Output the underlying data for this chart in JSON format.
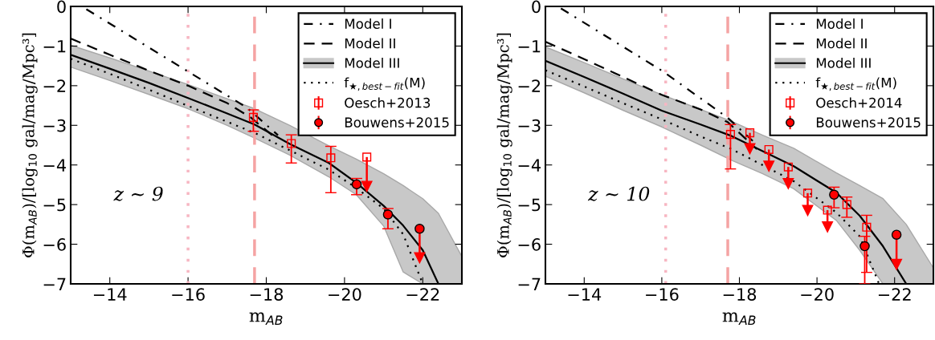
{
  "chart_data": [
    {
      "type": "line",
      "xlabel": "m$_{AB}$",
      "ylabel": "Φ(m$_{AB}$)/[log$_{10}$ gal/mag/Mpc³]",
      "xlim": [
        -13,
        -23
      ],
      "xticks": [
        -14,
        -16,
        -18,
        -20,
        -22
      ],
      "ylim": [
        -7,
        0
      ],
      "yticks": [
        -7,
        -6,
        -5,
        -4,
        -3,
        -2,
        -1,
        0
      ],
      "grid": false,
      "legend": "top right",
      "annotations": [
        "z ∼ 9"
      ],
      "ref_lines": [
        {
          "axis": "x",
          "value": -16,
          "color": "#f7b6c2",
          "line_style": "dotted"
        },
        {
          "axis": "x",
          "value": -17.7,
          "color": "#f5a3a3",
          "line_style": "dashed"
        }
      ],
      "series": [
        {
          "name": "Model I",
          "color": "#000000",
          "line_style": "dashdot",
          "x": [
            -13.4,
            -17.5,
            -18.3
          ],
          "values": [
            -0.07,
            -2.55,
            -3.25
          ]
        },
        {
          "name": "Model II",
          "color": "#000000",
          "line_style": "dashed",
          "x": [
            -13,
            -14,
            -15,
            -16,
            -17,
            -17.6,
            -18.15
          ],
          "values": [
            -0.81,
            -1.22,
            -1.62,
            -2.0,
            -2.44,
            -2.8,
            -3.25
          ]
        },
        {
          "name": "Model III",
          "color": "#000000",
          "line_style": "solid",
          "x": [
            -13,
            -14,
            -15,
            -16,
            -17,
            -17.7,
            -18.6,
            -19.6,
            -20.3,
            -21,
            -21.5,
            -22,
            -22.4,
            -23
          ],
          "values": [
            -1.22,
            -1.57,
            -1.93,
            -2.31,
            -2.7,
            -2.98,
            -3.47,
            -3.95,
            -4.45,
            -5.03,
            -5.53,
            -6.15,
            -7.0,
            null
          ],
          "upper": [
            -0.98,
            -1.3,
            -1.63,
            -1.97,
            -2.33,
            -2.58,
            -3.0,
            -3.52,
            -3.85,
            -4.22,
            -4.52,
            -4.85,
            -5.22,
            -6.31
          ],
          "lower": [
            -1.53,
            -1.87,
            -2.22,
            -2.58,
            -3.0,
            -3.32,
            -3.75,
            -4.3,
            -4.75,
            -5.54,
            -6.7,
            -7.0,
            -7.0,
            -7.0
          ]
        },
        {
          "name": "f$_{★,best−fit}$(M)",
          "color": "#000000",
          "line_style": "dotted",
          "x": [
            -13,
            -14,
            -15,
            -16,
            -17.7,
            -19.6,
            -20.3,
            -21,
            -21.5,
            -22
          ],
          "values": [
            -1.32,
            -1.7,
            -2.1,
            -2.51,
            -3.19,
            -4.12,
            -4.58,
            -5.1,
            -5.75,
            -7.0
          ]
        },
        {
          "name": "Oesch+2013",
          "type": "scatter",
          "color": "#ff0000",
          "marker": "square",
          "x": [
            -17.67,
            -18.64,
            -19.65,
            -20.57
          ],
          "values": [
            -2.8,
            -3.46,
            -3.82,
            -3.8
          ],
          "errors": [
            [
              -3.15,
              -2.61
            ],
            [
              -3.95,
              -3.24
            ],
            [
              -4.7,
              -3.53
            ],
            [
              -4.54,
              -3.8
            ]
          ]
        },
        {
          "name": "Bouwens+2015",
          "type": "scatter",
          "color": "#ff0000",
          "marker": "circle",
          "x": [
            -20.31,
            -21.11,
            -21.92
          ],
          "values": [
            -4.49,
            -5.25,
            -5.61
          ],
          "errors": [
            [
              -4.75,
              -4.34
            ],
            [
              -5.61,
              -5.1
            ],
            [
              -6.34,
              -5.61
            ]
          ]
        }
      ]
    },
    {
      "type": "line",
      "xlabel": "m$_{AB}$",
      "ylabel": "Φ(m$_{AB}$)/[log$_{10}$ gal/mag/Mpc³]",
      "xlim": [
        -13,
        -23
      ],
      "xticks": [
        -14,
        -16,
        -18,
        -20,
        -22
      ],
      "ylim": [
        -7,
        0
      ],
      "yticks": [
        -7,
        -6,
        -5,
        -4,
        -3,
        -2,
        -1,
        0
      ],
      "grid": false,
      "legend": "top right",
      "annotations": [
        "z ∼ 10"
      ],
      "ref_lines": [
        {
          "axis": "x",
          "value": -16.1,
          "color": "#f7b6c2",
          "line_style": "dotted"
        },
        {
          "axis": "x",
          "value": -17.7,
          "color": "#f5a3a3",
          "line_style": "dashed"
        }
      ],
      "series": [
        {
          "name": "Model I",
          "color": "#000000",
          "line_style": "dashdot",
          "x": [
            -13.4,
            -16,
            -17.7,
            -18.35
          ],
          "values": [
            -0.05,
            -1.62,
            -2.81,
            -3.4
          ]
        },
        {
          "name": "Model II",
          "color": "#000000",
          "line_style": "dashed",
          "x": [
            -13,
            -14,
            -15,
            -16,
            -17,
            -17.7,
            -18.45
          ],
          "values": [
            -0.89,
            -1.33,
            -1.78,
            -2.23,
            -2.6,
            -2.92,
            -3.6
          ]
        },
        {
          "name": "Model III",
          "color": "#000000",
          "line_style": "solid",
          "x": [
            -13,
            -14,
            -15,
            -16,
            -17,
            -17.8,
            -18.6,
            -19.4,
            -20.5,
            -21.1,
            -21.7,
            -22.3,
            -23
          ],
          "values": [
            -1.37,
            -1.78,
            -2.2,
            -2.63,
            -2.98,
            -3.27,
            -3.65,
            -4.03,
            -4.7,
            -5.28,
            -6.05,
            -7.0,
            null
          ],
          "upper": [
            -1.02,
            -1.42,
            -1.83,
            -2.23,
            -2.6,
            -2.9,
            -3.25,
            -3.58,
            -4.2,
            -4.52,
            -4.85,
            -5.5,
            -6.6
          ],
          "lower": [
            -1.76,
            -2.18,
            -2.62,
            -3.04,
            -3.5,
            -3.88,
            -4.22,
            -4.6,
            -5.4,
            -6.15,
            -7.0,
            -7.0,
            -7.0
          ]
        },
        {
          "name": "f$_{★,best−fit}$(M)",
          "color": "#000000",
          "line_style": "dotted",
          "x": [
            -13,
            -14,
            -15,
            -16,
            -17,
            -17.8,
            -19.4,
            -20.5,
            -21.1,
            -21.6
          ],
          "values": [
            -1.61,
            -2.02,
            -2.44,
            -2.85,
            -3.28,
            -3.6,
            -4.41,
            -5.2,
            -5.8,
            -7.0
          ]
        },
        {
          "name": "Oesch+2014",
          "type": "scatter",
          "color": "#ff0000",
          "marker": "square",
          "x": [
            -17.77,
            -18.27,
            -18.76,
            -19.26,
            -19.76,
            -20.27,
            -20.77,
            -21.28
          ],
          "values": [
            -3.23,
            -3.19,
            -3.61,
            -4.05,
            -4.71,
            -5.14,
            -5.0,
            -5.57
          ],
          "errors": [
            [
              -4.1,
              -2.98
            ],
            [
              -3.59,
              -3.19
            ],
            [
              -4.03,
              -3.61
            ],
            [
              -4.47,
              -4.05
            ],
            [
              -5.15,
              -4.71
            ],
            [
              -5.56,
              -5.14
            ],
            [
              -5.32,
              -4.81
            ],
            [
              -6.71,
              -5.27
            ]
          ]
        },
        {
          "name": "Bouwens+2015",
          "type": "scatter",
          "color": "#ff0000",
          "marker": "circle",
          "x": [
            -20.44,
            -21.23,
            -22.05
          ],
          "values": [
            -4.75,
            -6.05,
            -5.76
          ],
          "errors": [
            [
              -5.08,
              -4.56
            ],
            [
              -7.0,
              -5.8
            ],
            [
              -6.51,
              -5.76
            ]
          ]
        }
      ]
    }
  ]
}
